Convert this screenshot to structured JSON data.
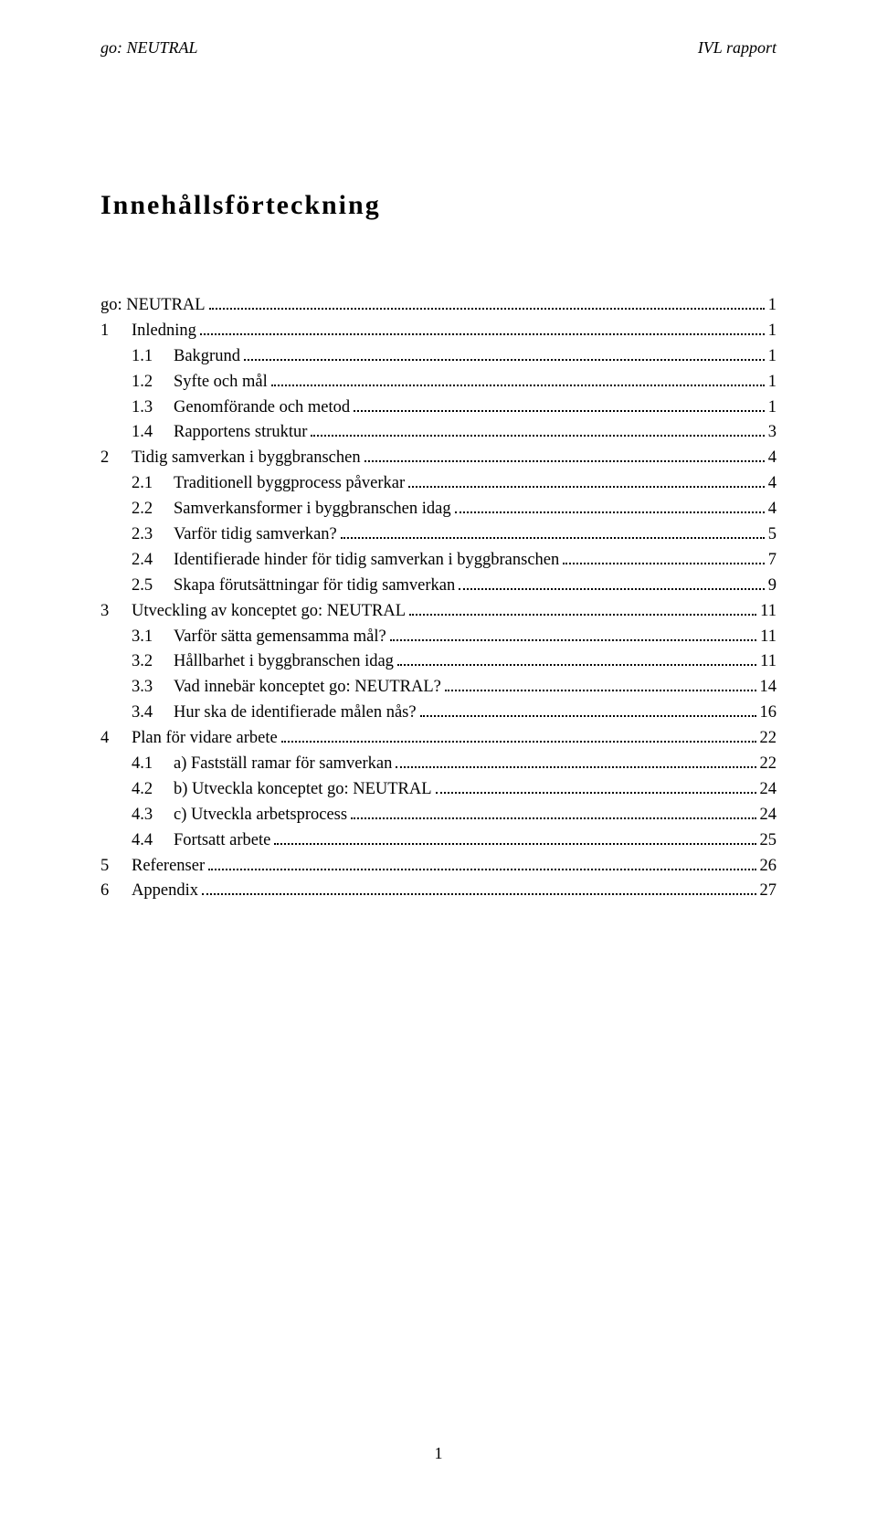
{
  "header": {
    "left": "go: NEUTRAL",
    "right": "IVL rapport"
  },
  "title": "Innehållsförteckning",
  "toc": [
    {
      "level": 0,
      "num": "",
      "label": "go: NEUTRAL",
      "page": "1"
    },
    {
      "level": 1,
      "num": "1",
      "label": "Inledning",
      "page": "1"
    },
    {
      "level": 2,
      "num": "1.1",
      "label": "Bakgrund",
      "page": "1"
    },
    {
      "level": 2,
      "num": "1.2",
      "label": "Syfte och mål",
      "page": "1"
    },
    {
      "level": 2,
      "num": "1.3",
      "label": "Genomförande och metod",
      "page": "1"
    },
    {
      "level": 2,
      "num": "1.4",
      "label": "Rapportens struktur",
      "page": "3"
    },
    {
      "level": 1,
      "num": "2",
      "label": "Tidig samverkan i byggbranschen",
      "page": "4"
    },
    {
      "level": 2,
      "num": "2.1",
      "label": "Traditionell byggprocess påverkar",
      "page": "4"
    },
    {
      "level": 2,
      "num": "2.2",
      "label": "Samverkansformer i byggbranschen idag",
      "page": "4"
    },
    {
      "level": 2,
      "num": "2.3",
      "label": "Varför tidig samverkan?",
      "page": "5"
    },
    {
      "level": 2,
      "num": "2.4",
      "label": "Identifierade hinder för tidig samverkan i byggbranschen",
      "page": "7"
    },
    {
      "level": 2,
      "num": "2.5",
      "label": "Skapa förutsättningar för tidig samverkan",
      "page": "9"
    },
    {
      "level": 1,
      "num": "3",
      "label": "Utveckling av konceptet go: NEUTRAL",
      "page": "11"
    },
    {
      "level": 2,
      "num": "3.1",
      "label": "Varför sätta gemensamma mål?",
      "page": "11"
    },
    {
      "level": 2,
      "num": "3.2",
      "label": "Hållbarhet i byggbranschen idag",
      "page": "11"
    },
    {
      "level": 2,
      "num": "3.3",
      "label": "Vad innebär konceptet go: NEUTRAL?",
      "page": "14"
    },
    {
      "level": 2,
      "num": "3.4",
      "label": "Hur ska de identifierade målen nås?",
      "page": "16"
    },
    {
      "level": 1,
      "num": "4",
      "label": "Plan för vidare arbete",
      "page": "22"
    },
    {
      "level": 2,
      "num": "4.1",
      "label": "a) Fastställ ramar för samverkan",
      "page": "22"
    },
    {
      "level": 2,
      "num": "4.2",
      "label": "b) Utveckla konceptet go: NEUTRAL",
      "page": "24"
    },
    {
      "level": 2,
      "num": "4.3",
      "label": "c) Utveckla arbetsprocess",
      "page": "24"
    },
    {
      "level": 2,
      "num": "4.4",
      "label": "Fortsatt arbete",
      "page": "25"
    },
    {
      "level": 1,
      "num": "5",
      "label": "Referenser",
      "page": "26"
    },
    {
      "level": 1,
      "num": "6",
      "label": "Appendix",
      "page": "27"
    }
  ],
  "footer_page": "1",
  "colors": {
    "background": "#ffffff",
    "text": "#000000"
  },
  "typography": {
    "font_family": "Garamond, Times New Roman, serif",
    "title_fontsize_pt": 22,
    "body_fontsize_pt": 14
  }
}
